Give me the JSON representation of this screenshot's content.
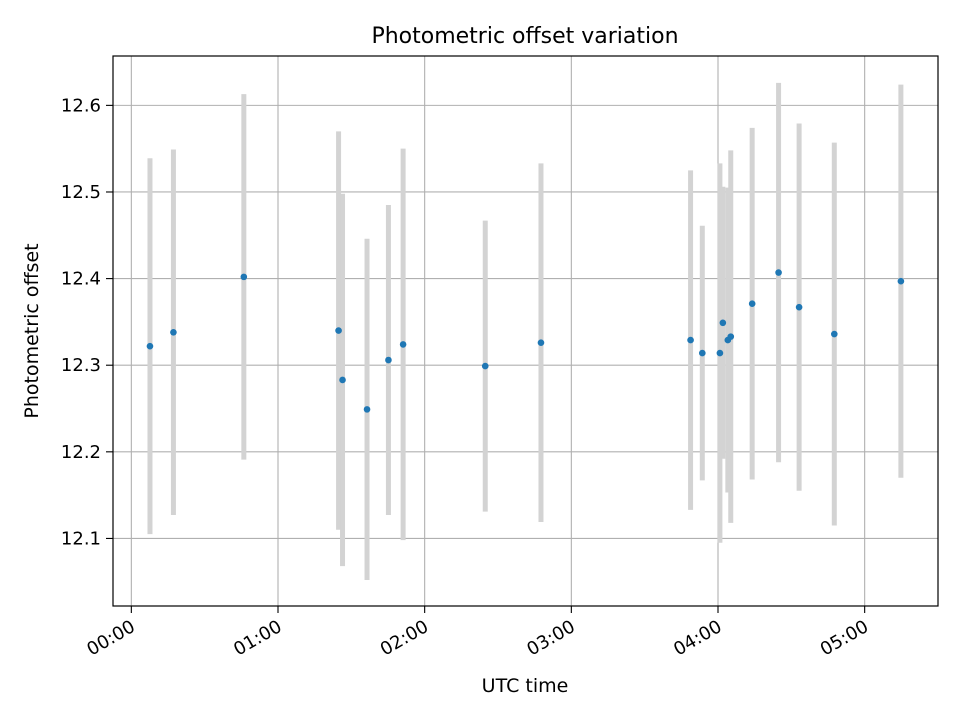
{
  "chart_data": {
    "type": "scatter",
    "title": "Photometric offset variation",
    "xlabel": "UTC time",
    "ylabel": "Photometric offset",
    "x_unit": "hours",
    "xlim": [
      -0.125,
      5.5
    ],
    "ylim": [
      12.022,
      12.657
    ],
    "grid": true,
    "x_ticks": [
      {
        "value": 0,
        "label": "00:00"
      },
      {
        "value": 1,
        "label": "01:00"
      },
      {
        "value": 2,
        "label": "02:00"
      },
      {
        "value": 3,
        "label": "03:00"
      },
      {
        "value": 4,
        "label": "04:00"
      },
      {
        "value": 5,
        "label": "05:00"
      }
    ],
    "y_ticks": [
      {
        "value": 12.1,
        "label": "12.1"
      },
      {
        "value": 12.2,
        "label": "12.2"
      },
      {
        "value": 12.3,
        "label": "12.3"
      },
      {
        "value": 12.4,
        "label": "12.4"
      },
      {
        "value": 12.5,
        "label": "12.5"
      },
      {
        "value": 12.6,
        "label": "12.6"
      }
    ],
    "series": [
      {
        "name": "offset",
        "marker_color": "#1f77b4",
        "errorbar_color": "#d3d3d3",
        "points": [
          {
            "x": 0.127,
            "y": 12.322,
            "err": 0.217
          },
          {
            "x": 0.287,
            "y": 12.338,
            "err": 0.211
          },
          {
            "x": 0.767,
            "y": 12.402,
            "err": 0.211
          },
          {
            "x": 1.413,
            "y": 12.34,
            "err": 0.23
          },
          {
            "x": 1.44,
            "y": 12.283,
            "err": 0.215
          },
          {
            "x": 1.607,
            "y": 12.249,
            "err": 0.197
          },
          {
            "x": 1.753,
            "y": 12.306,
            "err": 0.179
          },
          {
            "x": 1.853,
            "y": 12.324,
            "err": 0.226
          },
          {
            "x": 2.413,
            "y": 12.299,
            "err": 0.168
          },
          {
            "x": 2.793,
            "y": 12.326,
            "err": 0.207
          },
          {
            "x": 3.813,
            "y": 12.329,
            "err": 0.196
          },
          {
            "x": 3.893,
            "y": 12.314,
            "err": 0.147
          },
          {
            "x": 4.013,
            "y": 12.314,
            "err": 0.219
          },
          {
            "x": 4.033,
            "y": 12.349,
            "err": 0.157
          },
          {
            "x": 4.067,
            "y": 12.329,
            "err": 0.176
          },
          {
            "x": 4.087,
            "y": 12.333,
            "err": 0.215
          },
          {
            "x": 4.233,
            "y": 12.371,
            "err": 0.203
          },
          {
            "x": 4.413,
            "y": 12.407,
            "err": 0.219
          },
          {
            "x": 4.553,
            "y": 12.367,
            "err": 0.212
          },
          {
            "x": 4.793,
            "y": 12.336,
            "err": 0.221
          },
          {
            "x": 5.247,
            "y": 12.397,
            "err": 0.227
          }
        ]
      }
    ]
  }
}
